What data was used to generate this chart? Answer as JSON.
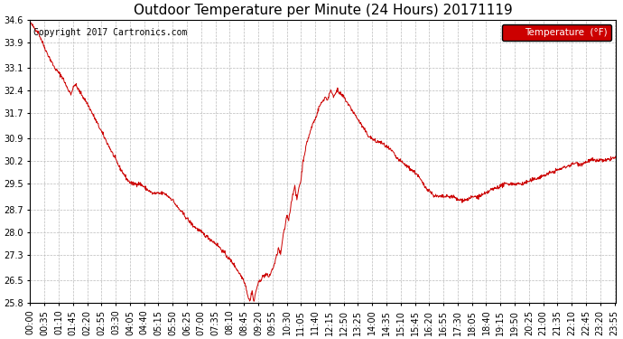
{
  "title": "Outdoor Temperature per Minute (24 Hours) 20171119",
  "copyright_text": "Copyright 2017 Cartronics.com",
  "legend_label": "Temperature  (°F)",
  "line_color": "#cc0000",
  "background_color": "#ffffff",
  "grid_color": "#bbbbbb",
  "legend_bg": "#cc0000",
  "legend_text_color": "#ffffff",
  "ylim": [
    25.8,
    34.6
  ],
  "yticks": [
    25.8,
    26.5,
    27.3,
    28.0,
    28.7,
    29.5,
    30.2,
    30.9,
    31.7,
    32.4,
    33.1,
    33.9,
    34.6
  ],
  "xtick_labels": [
    "00:00",
    "00:35",
    "01:10",
    "01:45",
    "02:20",
    "02:55",
    "03:30",
    "04:05",
    "04:40",
    "05:15",
    "05:50",
    "06:25",
    "07:00",
    "07:35",
    "08:10",
    "08:45",
    "09:20",
    "09:55",
    "10:30",
    "11:05",
    "11:40",
    "12:15",
    "12:50",
    "13:25",
    "14:00",
    "14:35",
    "15:10",
    "15:45",
    "16:20",
    "16:55",
    "17:30",
    "18:05",
    "18:40",
    "19:15",
    "19:50",
    "20:25",
    "21:00",
    "21:35",
    "22:10",
    "22:45",
    "23:20",
    "23:55"
  ],
  "title_fontsize": 11,
  "axis_fontsize": 7,
  "copyright_fontsize": 7,
  "waypoints": [
    [
      0,
      34.5
    ],
    [
      20,
      34.2
    ],
    [
      40,
      33.6
    ],
    [
      60,
      33.1
    ],
    [
      80,
      32.8
    ],
    [
      90,
      32.5
    ],
    [
      100,
      32.3
    ],
    [
      110,
      32.6
    ],
    [
      120,
      32.4
    ],
    [
      130,
      32.2
    ],
    [
      140,
      32.0
    ],
    [
      160,
      31.5
    ],
    [
      180,
      31.0
    ],
    [
      200,
      30.5
    ],
    [
      220,
      30.0
    ],
    [
      240,
      29.6
    ],
    [
      250,
      29.5
    ],
    [
      260,
      29.5
    ],
    [
      270,
      29.5
    ],
    [
      280,
      29.4
    ],
    [
      290,
      29.3
    ],
    [
      300,
      29.2
    ],
    [
      310,
      29.2
    ],
    [
      320,
      29.2
    ],
    [
      330,
      29.2
    ],
    [
      340,
      29.1
    ],
    [
      350,
      29.0
    ],
    [
      360,
      28.8
    ],
    [
      380,
      28.5
    ],
    [
      400,
      28.2
    ],
    [
      420,
      28.0
    ],
    [
      440,
      27.8
    ],
    [
      460,
      27.6
    ],
    [
      480,
      27.3
    ],
    [
      500,
      27.0
    ],
    [
      510,
      26.8
    ],
    [
      515,
      26.7
    ],
    [
      520,
      26.6
    ],
    [
      525,
      26.5
    ],
    [
      530,
      26.3
    ],
    [
      535,
      26.0
    ],
    [
      538,
      25.9
    ],
    [
      540,
      25.85
    ],
    [
      542,
      26.0
    ],
    [
      545,
      26.2
    ],
    [
      548,
      25.9
    ],
    [
      550,
      25.85
    ],
    [
      552,
      26.0
    ],
    [
      555,
      26.2
    ],
    [
      560,
      26.4
    ],
    [
      565,
      26.5
    ],
    [
      570,
      26.6
    ],
    [
      580,
      26.7
    ],
    [
      585,
      26.6
    ],
    [
      590,
      26.7
    ],
    [
      600,
      27.0
    ],
    [
      610,
      27.5
    ],
    [
      615,
      27.3
    ],
    [
      620,
      27.8
    ],
    [
      625,
      28.1
    ],
    [
      630,
      28.5
    ],
    [
      635,
      28.4
    ],
    [
      640,
      28.8
    ],
    [
      645,
      29.2
    ],
    [
      650,
      29.4
    ],
    [
      655,
      29.0
    ],
    [
      660,
      29.4
    ],
    [
      665,
      29.6
    ],
    [
      670,
      30.2
    ],
    [
      675,
      30.5
    ],
    [
      680,
      30.8
    ],
    [
      685,
      31.0
    ],
    [
      690,
      31.2
    ],
    [
      695,
      31.4
    ],
    [
      700,
      31.5
    ],
    [
      705,
      31.7
    ],
    [
      710,
      31.9
    ],
    [
      715,
      32.0
    ],
    [
      720,
      32.1
    ],
    [
      725,
      32.2
    ],
    [
      730,
      32.1
    ],
    [
      735,
      32.3
    ],
    [
      740,
      32.4
    ],
    [
      745,
      32.2
    ],
    [
      750,
      32.35
    ],
    [
      755,
      32.4
    ],
    [
      760,
      32.3
    ],
    [
      770,
      32.2
    ],
    [
      780,
      32.0
    ],
    [
      790,
      31.8
    ],
    [
      800,
      31.6
    ],
    [
      810,
      31.4
    ],
    [
      820,
      31.2
    ],
    [
      830,
      31.0
    ],
    [
      840,
      30.9
    ],
    [
      850,
      30.8
    ],
    [
      860,
      30.8
    ],
    [
      870,
      30.7
    ],
    [
      880,
      30.6
    ],
    [
      890,
      30.5
    ],
    [
      900,
      30.3
    ],
    [
      910,
      30.2
    ],
    [
      920,
      30.1
    ],
    [
      930,
      30.0
    ],
    [
      940,
      29.9
    ],
    [
      950,
      29.8
    ],
    [
      960,
      29.6
    ],
    [
      970,
      29.4
    ],
    [
      980,
      29.3
    ],
    [
      990,
      29.15
    ],
    [
      1000,
      29.1
    ],
    [
      1010,
      29.1
    ],
    [
      1020,
      29.1
    ],
    [
      1030,
      29.1
    ],
    [
      1040,
      29.1
    ],
    [
      1050,
      29.0
    ],
    [
      1060,
      29.0
    ],
    [
      1070,
      29.0
    ],
    [
      1080,
      29.05
    ],
    [
      1090,
      29.1
    ],
    [
      1100,
      29.1
    ],
    [
      1110,
      29.15
    ],
    [
      1120,
      29.2
    ],
    [
      1130,
      29.3
    ],
    [
      1140,
      29.35
    ],
    [
      1150,
      29.4
    ],
    [
      1160,
      29.45
    ],
    [
      1170,
      29.5
    ],
    [
      1180,
      29.5
    ],
    [
      1190,
      29.5
    ],
    [
      1200,
      29.5
    ],
    [
      1210,
      29.5
    ],
    [
      1220,
      29.55
    ],
    [
      1230,
      29.6
    ],
    [
      1240,
      29.65
    ],
    [
      1250,
      29.7
    ],
    [
      1260,
      29.75
    ],
    [
      1270,
      29.8
    ],
    [
      1280,
      29.85
    ],
    [
      1290,
      29.9
    ],
    [
      1300,
      29.95
    ],
    [
      1310,
      30.0
    ],
    [
      1320,
      30.05
    ],
    [
      1330,
      30.1
    ],
    [
      1340,
      30.15
    ],
    [
      1350,
      30.1
    ],
    [
      1360,
      30.15
    ],
    [
      1370,
      30.2
    ],
    [
      1380,
      30.25
    ],
    [
      1390,
      30.2
    ],
    [
      1400,
      30.25
    ],
    [
      1410,
      30.2
    ],
    [
      1420,
      30.25
    ],
    [
      1430,
      30.3
    ],
    [
      1439,
      30.3
    ]
  ]
}
